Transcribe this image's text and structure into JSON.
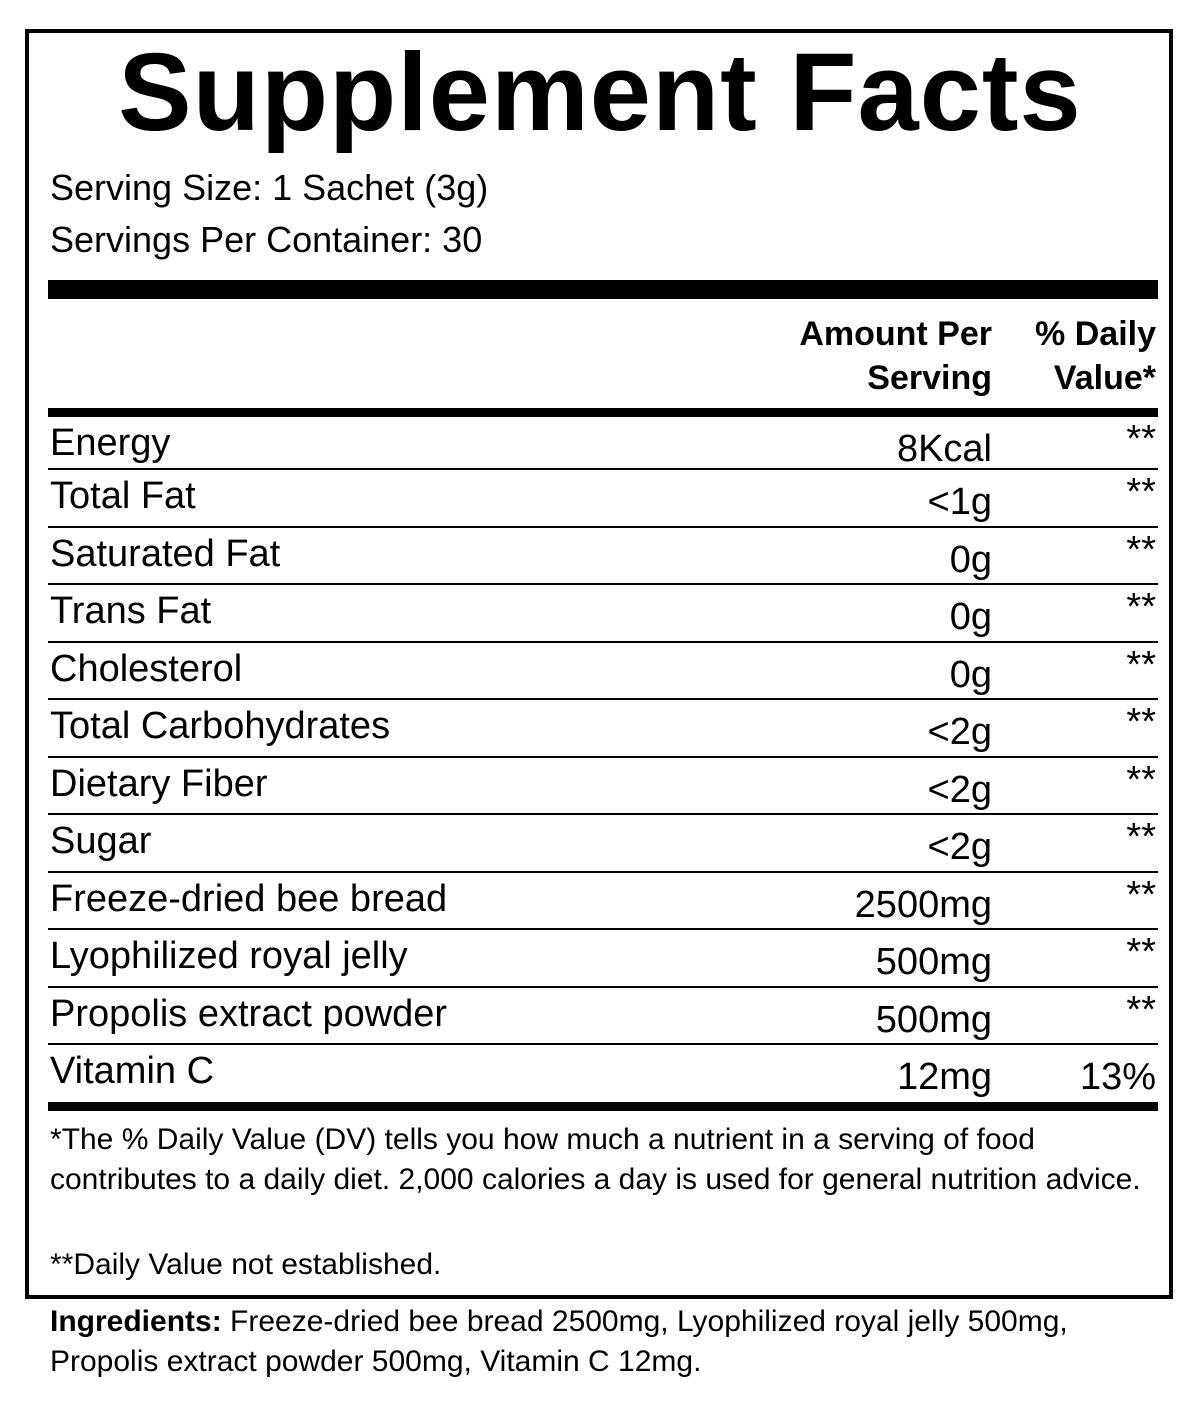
{
  "title": "Supplement Facts",
  "serving_size": "Serving Size: 1 Sachet (3g)",
  "servings_per_container": "Servings Per Container: 30",
  "header": {
    "amount_line1": "Amount Per",
    "amount_line2": "Serving",
    "dv_line1": "% Daily",
    "dv_line2": "Value*"
  },
  "rows": [
    {
      "name": "Energy",
      "amount": "8Kcal",
      "dv": "**"
    },
    {
      "name": "Total Fat",
      "amount": "<1g",
      "dv": "**"
    },
    {
      "name": "Saturated Fat",
      "amount": "0g",
      "dv": "**"
    },
    {
      "name": "Trans Fat",
      "amount": "0g",
      "dv": "**"
    },
    {
      "name": "Cholesterol",
      "amount": "0g",
      "dv": "**"
    },
    {
      "name": "Total Carbohydrates",
      "amount": "<2g",
      "dv": "**"
    },
    {
      "name": "Dietary Fiber",
      "amount": "<2g",
      "dv": "**"
    },
    {
      "name": "Sugar",
      "amount": "<2g",
      "dv": "**"
    },
    {
      "name": "Freeze-dried bee bread",
      "amount": "2500mg",
      "dv": "**"
    },
    {
      "name": "Lyophilized royal jelly",
      "amount": "500mg",
      "dv": "**"
    },
    {
      "name": "Propolis extract powder",
      "amount": "500mg",
      "dv": "**"
    },
    {
      "name": "Vitamin C",
      "amount": "12mg",
      "dv": "13%"
    }
  ],
  "footnote_dv": "*The % Daily Value (DV) tells you how much a nutrient in a serving of food contributes to a daily diet. 2,000 calories a day is used for general nutrition advice.",
  "footnote_na": "**Daily Value not established.",
  "ingredients": {
    "label": "Ingredients:",
    "text": " Freeze-dried bee bread 2500mg, Lyophilized royal jelly 500mg, Propolis extract powder 500mg, Vitamin C 12mg."
  }
}
